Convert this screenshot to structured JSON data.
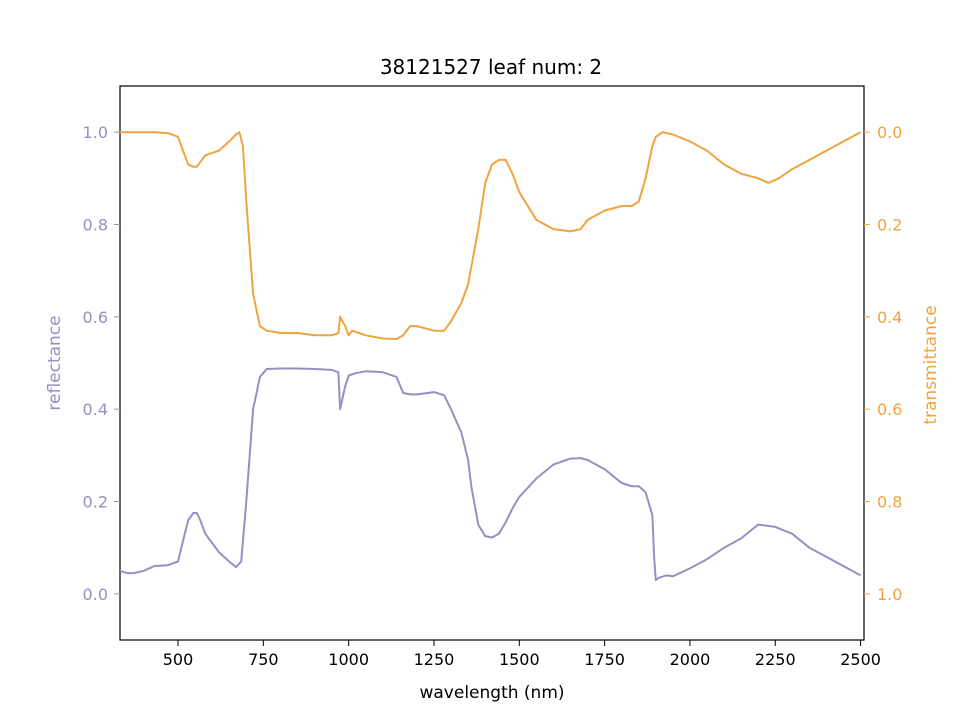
{
  "chart_data": {
    "type": "line",
    "title": "38121527 leaf num: 2",
    "xlabel": "wavelength (nm)",
    "ylabel_left": "reflectance",
    "ylabel_right": "transmittance",
    "xlim": [
      330,
      2510
    ],
    "ylim_left": [
      -0.1,
      1.1
    ],
    "ylim_right": [
      1.1,
      -0.1
    ],
    "x_ticks": [
      500,
      750,
      1000,
      1250,
      1500,
      1750,
      2000,
      2250,
      2500
    ],
    "y_left_ticks": [
      0.0,
      0.2,
      0.4,
      0.6,
      0.8,
      1.0
    ],
    "y_right_ticks": [
      0.0,
      0.2,
      0.4,
      0.6,
      0.8,
      1.0
    ],
    "grid": false,
    "colors": {
      "reflectance": "#9490c2",
      "transmittance": "#f0a33e"
    },
    "series": [
      {
        "axis": "left",
        "x": [
          330,
          350,
          370,
          400,
          430,
          470,
          500,
          520,
          530,
          545,
          555,
          565,
          580,
          600,
          620,
          650,
          670,
          685,
          700,
          720,
          740,
          760,
          800,
          850,
          900,
          950,
          970,
          975,
          990,
          1000,
          1020,
          1050,
          1100,
          1140,
          1160,
          1180,
          1200,
          1250,
          1280,
          1300,
          1330,
          1350,
          1360,
          1380,
          1400,
          1420,
          1440,
          1460,
          1480,
          1500,
          1550,
          1600,
          1650,
          1680,
          1700,
          1750,
          1800,
          1830,
          1850,
          1870,
          1890,
          1895,
          1900,
          1910,
          1930,
          1950,
          2000,
          2050,
          2100,
          2150,
          2200,
          2250,
          2300,
          2350,
          2400,
          2450,
          2500
        ],
        "y": [
          0.05,
          0.045,
          0.045,
          0.05,
          0.06,
          0.062,
          0.07,
          0.13,
          0.16,
          0.175,
          0.175,
          0.16,
          0.13,
          0.11,
          0.09,
          0.07,
          0.058,
          0.07,
          0.2,
          0.4,
          0.47,
          0.487,
          0.488,
          0.488,
          0.487,
          0.485,
          0.48,
          0.4,
          0.45,
          0.473,
          0.478,
          0.482,
          0.48,
          0.47,
          0.435,
          0.432,
          0.432,
          0.437,
          0.43,
          0.4,
          0.35,
          0.29,
          0.23,
          0.15,
          0.125,
          0.122,
          0.13,
          0.155,
          0.185,
          0.21,
          0.25,
          0.28,
          0.293,
          0.294,
          0.29,
          0.27,
          0.24,
          0.233,
          0.233,
          0.22,
          0.17,
          0.08,
          0.03,
          0.035,
          0.04,
          0.038,
          0.055,
          0.075,
          0.1,
          0.12,
          0.15,
          0.145,
          0.13,
          0.1,
          0.08,
          0.06,
          0.04
        ]
      },
      {
        "axis": "right",
        "x": [
          330,
          350,
          370,
          400,
          430,
          470,
          500,
          520,
          530,
          545,
          555,
          565,
          580,
          600,
          620,
          650,
          670,
          680,
          690,
          700,
          720,
          740,
          760,
          800,
          850,
          900,
          950,
          970,
          975,
          990,
          1000,
          1010,
          1050,
          1100,
          1140,
          1160,
          1180,
          1200,
          1250,
          1280,
          1300,
          1330,
          1350,
          1360,
          1380,
          1400,
          1420,
          1440,
          1460,
          1480,
          1500,
          1550,
          1600,
          1650,
          1680,
          1700,
          1750,
          1800,
          1830,
          1850,
          1870,
          1890,
          1900,
          1920,
          1950,
          2000,
          2050,
          2100,
          2150,
          2200,
          2230,
          2260,
          2300,
          2350,
          2400,
          2450,
          2500
        ],
        "y": [
          0.0,
          0.0,
          0.0,
          0.0,
          0.0,
          0.002,
          0.01,
          0.05,
          0.07,
          0.075,
          0.075,
          0.065,
          0.05,
          0.045,
          0.04,
          0.02,
          0.005,
          0.0,
          0.03,
          0.15,
          0.35,
          0.42,
          0.43,
          0.435,
          0.435,
          0.44,
          0.44,
          0.435,
          0.4,
          0.42,
          0.44,
          0.43,
          0.44,
          0.447,
          0.448,
          0.44,
          0.42,
          0.42,
          0.43,
          0.43,
          0.41,
          0.37,
          0.33,
          0.29,
          0.21,
          0.11,
          0.07,
          0.06,
          0.06,
          0.09,
          0.13,
          0.19,
          0.21,
          0.215,
          0.21,
          0.19,
          0.17,
          0.16,
          0.16,
          0.15,
          0.1,
          0.03,
          0.01,
          0.0,
          0.005,
          0.02,
          0.04,
          0.07,
          0.09,
          0.1,
          0.11,
          0.1,
          0.08,
          0.06,
          0.04,
          0.02,
          0.0
        ]
      }
    ]
  }
}
